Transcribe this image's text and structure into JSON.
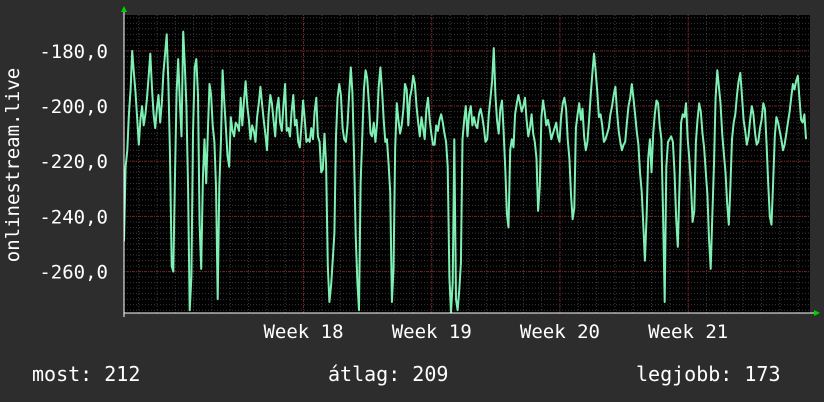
{
  "colors": {
    "background": "#2d2d2d",
    "plot_background": "#000000",
    "grid_major": "#8a1c1c",
    "grid_minor": "#3c3c3c",
    "series": "#7ff0b4",
    "axis_arrow": "#00d000"
  },
  "footer": {
    "current_label": "most:",
    "current_value": "212",
    "average_label": "átlag:",
    "average_value": "209",
    "best_label": "legjobb:",
    "best_value": "173"
  },
  "chart_data": {
    "type": "line",
    "ylabel": "onlinestream.live",
    "ylim": [
      -275,
      -167
    ],
    "yticks": [
      -260,
      -240,
      -220,
      -200,
      -180
    ],
    "ytick_labels": [
      "-260,0",
      "-240,0",
      "-220,0",
      "-200,0",
      "-180,0"
    ],
    "x_period_weeks": [
      16.6,
      21.95
    ],
    "xticks": [
      18,
      19,
      20,
      21
    ],
    "xtick_labels": [
      "Week 18",
      "Week 19",
      "Week 20",
      "Week 21"
    ],
    "grid": true,
    "series": [
      {
        "values": [
          -249,
          -222,
          -216,
          -203,
          -194,
          -180,
          -188,
          -195,
          -204,
          -214,
          -205,
          -200,
          -207,
          -203,
          -197,
          -189,
          -181,
          -193,
          -203,
          -208,
          -201,
          -196,
          -206,
          -199,
          -188,
          -181,
          -174,
          -192,
          -218,
          -258,
          -260,
          -227,
          -195,
          -183,
          -199,
          -211,
          -173,
          -185,
          -200,
          -230,
          -274,
          -262,
          -210,
          -186,
          -183,
          -196,
          -243,
          -259,
          -226,
          -212,
          -228,
          -210,
          -192,
          -196,
          -207,
          -213,
          -229,
          -270,
          -229,
          -212,
          -187,
          -198,
          -208,
          -218,
          -222,
          -204,
          -209,
          -211,
          -206,
          -207,
          -209,
          -197,
          -207,
          -198,
          -191,
          -200,
          -205,
          -212,
          -207,
          -209,
          -213,
          -204,
          -199,
          -193,
          -199,
          -205,
          -210,
          -216,
          -203,
          -196,
          -199,
          -205,
          -211,
          -201,
          -197,
          -206,
          -209,
          -200,
          -192,
          -209,
          -208,
          -211,
          -202,
          -196,
          -207,
          -205,
          -213,
          -215,
          -207,
          -198,
          -205,
          -213,
          -212,
          -213,
          -208,
          -212,
          -202,
          -197,
          -211,
          -213,
          -224,
          -223,
          -210,
          -221,
          -258,
          -271,
          -265,
          -256,
          -246,
          -211,
          -197,
          -192,
          -196,
          -208,
          -212,
          -213,
          -207,
          -196,
          -186,
          -195,
          -219,
          -247,
          -264,
          -274,
          -228,
          -211,
          -194,
          -187,
          -190,
          -199,
          -210,
          -211,
          -206,
          -213,
          -206,
          -193,
          -186,
          -194,
          -205,
          -213,
          -212,
          -221,
          -231,
          -271,
          -259,
          -215,
          -199,
          -205,
          -210,
          -207,
          -201,
          -192,
          -194,
          -207,
          -197,
          -194,
          -189,
          -192,
          -200,
          -206,
          -211,
          -204,
          -208,
          -212,
          -201,
          -197,
          -205,
          -210,
          -214,
          -214,
          -207,
          -209,
          -205,
          -203,
          -206,
          -210,
          -213,
          -222,
          -262,
          -275,
          -264,
          -212,
          -270,
          -274,
          -267,
          -257,
          -212,
          -205,
          -200,
          -211,
          -203,
          -200,
          -207,
          -204,
          -207,
          -208,
          -203,
          -201,
          -204,
          -208,
          -213,
          -212,
          -203,
          -197,
          -191,
          -179,
          -196,
          -205,
          -210,
          -201,
          -198,
          -209,
          -223,
          -239,
          -244,
          -216,
          -212,
          -215,
          -203,
          -199,
          -196,
          -199,
          -202,
          -200,
          -197,
          -205,
          -211,
          -208,
          -203,
          -210,
          -213,
          -219,
          -238,
          -229,
          -204,
          -198,
          -202,
          -207,
          -205,
          -208,
          -212,
          -210,
          -208,
          -206,
          -211,
          -213,
          -204,
          -199,
          -197,
          -201,
          -212,
          -219,
          -232,
          -241,
          -237,
          -208,
          -203,
          -199,
          -205,
          -201,
          -211,
          -216,
          -213,
          -205,
          -196,
          -188,
          -181,
          -187,
          -195,
          -204,
          -203,
          -207,
          -213,
          -212,
          -210,
          -208,
          -203,
          -200,
          -196,
          -193,
          -202,
          -209,
          -213,
          -216,
          -214,
          -213,
          -206,
          -200,
          -197,
          -192,
          -197,
          -203,
          -209,
          -214,
          -224,
          -231,
          -243,
          -256,
          -240,
          -219,
          -212,
          -224,
          -210,
          -203,
          -198,
          -199,
          -207,
          -212,
          -238,
          -271,
          -222,
          -213,
          -212,
          -211,
          -213,
          -224,
          -241,
          -251,
          -229,
          -206,
          -203,
          -204,
          -199,
          -212,
          -219,
          -229,
          -242,
          -238,
          -213,
          -205,
          -199,
          -202,
          -210,
          -215,
          -224,
          -232,
          -248,
          -259,
          -240,
          -221,
          -197,
          -187,
          -193,
          -199,
          -210,
          -217,
          -224,
          -235,
          -243,
          -229,
          -212,
          -206,
          -203,
          -196,
          -191,
          -188,
          -196,
          -205,
          -209,
          -214,
          -211,
          -205,
          -200,
          -203,
          -210,
          -214,
          -213,
          -208,
          -205,
          -199,
          -201,
          -214,
          -228,
          -240,
          -243,
          -228,
          -211,
          -204,
          -206,
          -209,
          -212,
          -216,
          -214,
          -210,
          -206,
          -202,
          -197,
          -192,
          -194,
          -191,
          -189,
          -197,
          -205,
          -206,
          -203,
          -212
        ]
      }
    ]
  }
}
